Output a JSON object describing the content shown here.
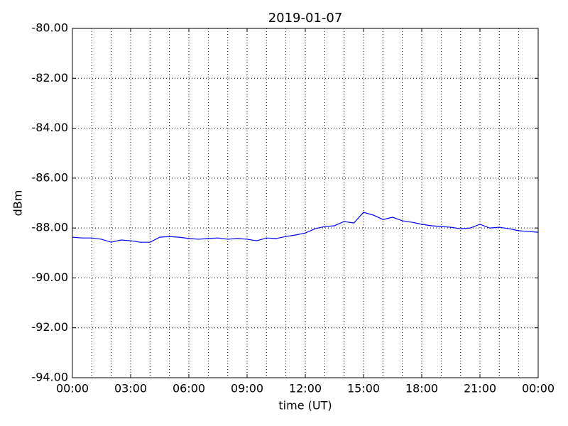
{
  "chart_data": {
    "type": "line",
    "title": "2019-01-07",
    "xlabel": "time (UT)",
    "ylabel": "dBm",
    "x": [
      0,
      0.5,
      1,
      1.5,
      2,
      2.5,
      3,
      3.5,
      4,
      4.5,
      5,
      5.5,
      6,
      6.5,
      7,
      7.5,
      8,
      8.5,
      9,
      9.5,
      10,
      10.5,
      11,
      11.5,
      12,
      12.5,
      13,
      13.5,
      14,
      14.5,
      15,
      15.5,
      16,
      16.5,
      17,
      17.5,
      18,
      18.5,
      19,
      19.5,
      20,
      20.5,
      21,
      21.5,
      22,
      22.5,
      23,
      23.5,
      24
    ],
    "series": [
      {
        "name": "dBm",
        "color": "#0000ff",
        "values": [
          -88.37,
          -88.4,
          -88.4,
          -88.45,
          -88.57,
          -88.48,
          -88.51,
          -88.57,
          -88.57,
          -88.37,
          -88.34,
          -88.37,
          -88.42,
          -88.45,
          -88.42,
          -88.4,
          -88.45,
          -88.42,
          -88.45,
          -88.51,
          -88.4,
          -88.42,
          -88.34,
          -88.28,
          -88.2,
          -88.03,
          -87.94,
          -87.91,
          -87.74,
          -87.8,
          -87.37,
          -87.48,
          -87.66,
          -87.57,
          -87.71,
          -87.77,
          -87.85,
          -87.91,
          -87.94,
          -87.97,
          -88.03,
          -88.0,
          -87.85,
          -88.0,
          -87.97,
          -88.03,
          -88.11,
          -88.14,
          -88.17
        ]
      }
    ],
    "xlim": [
      0,
      24
    ],
    "xticks": [
      {
        "value": 0,
        "label": "00:00"
      },
      {
        "value": 3,
        "label": "03:00"
      },
      {
        "value": 6,
        "label": "06:00"
      },
      {
        "value": 9,
        "label": "09:00"
      },
      {
        "value": 12,
        "label": "12:00"
      },
      {
        "value": 15,
        "label": "15:00"
      },
      {
        "value": 18,
        "label": "18:00"
      },
      {
        "value": 21,
        "label": "21:00"
      },
      {
        "value": 24,
        "label": "00:00"
      }
    ],
    "xminorticks": [
      1,
      2,
      4,
      5,
      7,
      8,
      10,
      11,
      13,
      14,
      16,
      17,
      19,
      20,
      22,
      23
    ],
    "ylim": [
      -94,
      -80
    ],
    "yticks": [
      {
        "value": -94,
        "label": "-94.00"
      },
      {
        "value": -92,
        "label": "-92.00"
      },
      {
        "value": -90,
        "label": "-90.00"
      },
      {
        "value": -88,
        "label": "-88.00"
      },
      {
        "value": -86,
        "label": "-86.00"
      },
      {
        "value": -84,
        "label": "-84.00"
      },
      {
        "value": -82,
        "label": "-82.00"
      },
      {
        "value": -80,
        "label": "-80.00"
      }
    ],
    "grid": true
  }
}
